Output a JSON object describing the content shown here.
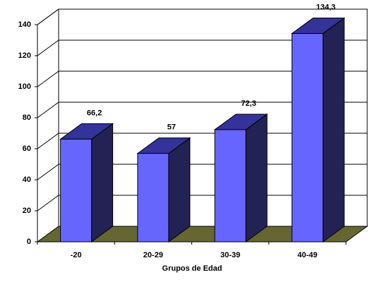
{
  "chart_data": {
    "type": "bar3d",
    "x_label": "Grupos de Edad",
    "categories": [
      "-20",
      "20-29",
      "30-39",
      "40-49"
    ],
    "values": [
      66.2,
      57,
      72.3,
      134.3
    ],
    "value_labels": [
      "66,2",
      "57",
      "72,3",
      "134,3"
    ],
    "color": "#6666ff",
    "ylim": [
      0,
      140
    ],
    "yticks": [
      0,
      20,
      40,
      60,
      80,
      100,
      120,
      140
    ],
    "grid": true
  }
}
